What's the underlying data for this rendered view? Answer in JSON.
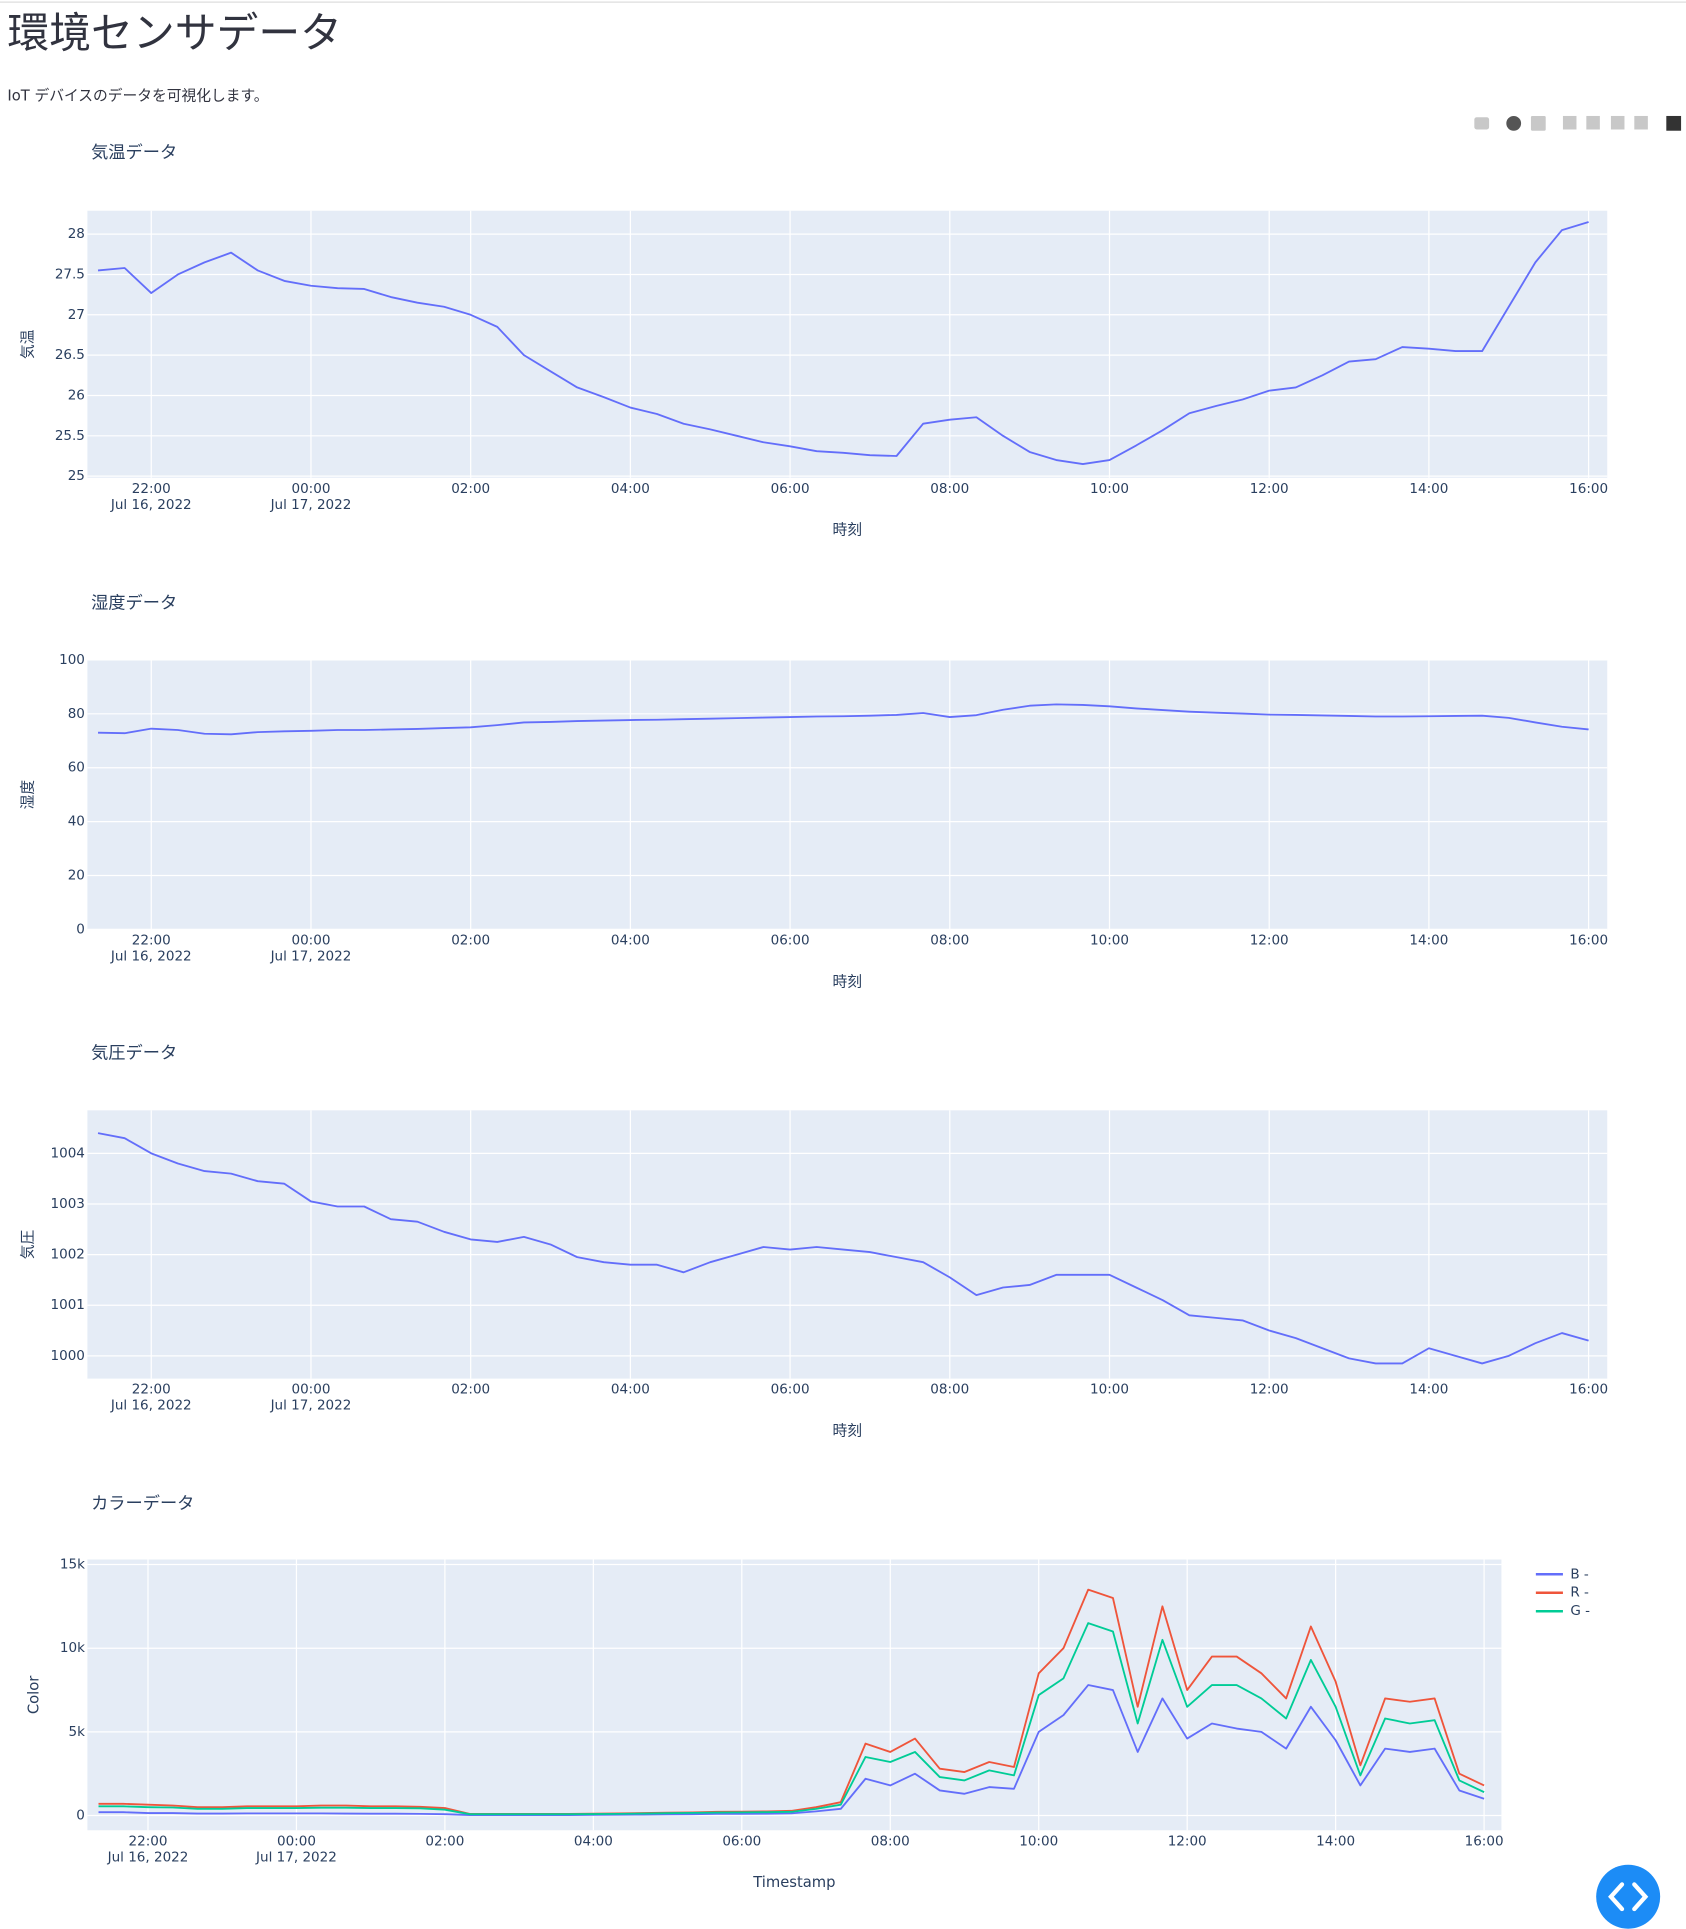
{
  "header": {
    "title": "環境センサデータ",
    "subtitle": "IoT デバイスのデータを可視化します。"
  },
  "chart_data": [
    {
      "type": "line",
      "title": "気温データ",
      "x_label": "時刻",
      "y_label": "気温",
      "xlim": [
        "2022-07-16T21:12",
        "2022-07-17T16:14"
      ],
      "ylim": [
        24.98,
        28.29
      ],
      "yticks": [
        25,
        25.5,
        26,
        26.5,
        27,
        27.5,
        28
      ],
      "grid": true,
      "xticks": [
        {
          "value": "2022-07-16T22:00",
          "label": "22:00",
          "date": "Jul 16, 2022"
        },
        {
          "value": "2022-07-17T00:00",
          "label": "00:00",
          "date": "Jul 17, 2022"
        },
        {
          "value": "2022-07-17T02:00",
          "label": "02:00"
        },
        {
          "value": "2022-07-17T04:00",
          "label": "04:00"
        },
        {
          "value": "2022-07-17T06:00",
          "label": "06:00"
        },
        {
          "value": "2022-07-17T08:00",
          "label": "08:00"
        },
        {
          "value": "2022-07-17T10:00",
          "label": "10:00"
        },
        {
          "value": "2022-07-17T12:00",
          "label": "12:00"
        },
        {
          "value": "2022-07-17T14:00",
          "label": "14:00"
        },
        {
          "value": "2022-07-17T16:00",
          "label": "16:00"
        }
      ],
      "x": [
        "2022-07-16T21:20",
        "2022-07-16T21:40",
        "2022-07-16T22:00",
        "2022-07-16T22:20",
        "2022-07-16T22:40",
        "2022-07-16T23:00",
        "2022-07-16T23:20",
        "2022-07-16T23:40",
        "2022-07-17T00:00",
        "2022-07-17T00:20",
        "2022-07-17T00:40",
        "2022-07-17T01:00",
        "2022-07-17T01:20",
        "2022-07-17T01:40",
        "2022-07-17T02:00",
        "2022-07-17T02:20",
        "2022-07-17T02:40",
        "2022-07-17T03:00",
        "2022-07-17T03:20",
        "2022-07-17T03:40",
        "2022-07-17T04:00",
        "2022-07-17T04:20",
        "2022-07-17T04:40",
        "2022-07-17T05:00",
        "2022-07-17T05:20",
        "2022-07-17T05:40",
        "2022-07-17T06:00",
        "2022-07-17T06:20",
        "2022-07-17T06:40",
        "2022-07-17T07:00",
        "2022-07-17T07:20",
        "2022-07-17T07:40",
        "2022-07-17T08:00",
        "2022-07-17T08:20",
        "2022-07-17T08:40",
        "2022-07-17T09:00",
        "2022-07-17T09:20",
        "2022-07-17T09:40",
        "2022-07-17T10:00",
        "2022-07-17T10:20",
        "2022-07-17T10:40",
        "2022-07-17T11:00",
        "2022-07-17T11:20",
        "2022-07-17T11:40",
        "2022-07-17T12:00",
        "2022-07-17T12:20",
        "2022-07-17T12:40",
        "2022-07-17T13:00",
        "2022-07-17T13:20",
        "2022-07-17T13:40",
        "2022-07-17T14:00",
        "2022-07-17T14:20",
        "2022-07-17T14:40",
        "2022-07-17T15:00",
        "2022-07-17T15:20",
        "2022-07-17T15:40",
        "2022-07-17T16:00"
      ],
      "series": [
        {
          "color": "#636efa",
          "values": [
            27.55,
            27.58,
            27.27,
            27.5,
            27.65,
            27.77,
            27.55,
            27.42,
            27.36,
            27.33,
            27.32,
            27.22,
            27.15,
            27.1,
            27.0,
            26.85,
            26.5,
            26.3,
            26.1,
            25.98,
            25.85,
            25.77,
            25.65,
            25.58,
            25.5,
            25.42,
            25.37,
            25.31,
            25.29,
            25.26,
            25.25,
            25.65,
            25.7,
            25.73,
            25.5,
            25.3,
            25.2,
            25.15,
            25.2,
            25.38,
            25.57,
            25.78,
            25.87,
            25.95,
            26.06,
            26.1,
            26.25,
            26.42,
            26.45,
            26.6,
            26.58,
            26.55,
            26.55,
            27.1,
            27.65,
            28.05,
            28.15
          ]
        }
      ]
    },
    {
      "type": "line",
      "title": "湿度データ",
      "x_label": "時刻",
      "y_label": "湿度",
      "xlim": [
        "2022-07-16T21:12",
        "2022-07-17T16:14"
      ],
      "ylim": [
        0,
        100
      ],
      "yticks": [
        0,
        20,
        40,
        60,
        80,
        100
      ],
      "grid": true,
      "xticks": [
        {
          "value": "2022-07-16T22:00",
          "label": "22:00",
          "date": "Jul 16, 2022"
        },
        {
          "value": "2022-07-17T00:00",
          "label": "00:00",
          "date": "Jul 17, 2022"
        },
        {
          "value": "2022-07-17T02:00",
          "label": "02:00"
        },
        {
          "value": "2022-07-17T04:00",
          "label": "04:00"
        },
        {
          "value": "2022-07-17T06:00",
          "label": "06:00"
        },
        {
          "value": "2022-07-17T08:00",
          "label": "08:00"
        },
        {
          "value": "2022-07-17T10:00",
          "label": "10:00"
        },
        {
          "value": "2022-07-17T12:00",
          "label": "12:00"
        },
        {
          "value": "2022-07-17T14:00",
          "label": "14:00"
        },
        {
          "value": "2022-07-17T16:00",
          "label": "16:00"
        }
      ],
      "x": [
        "2022-07-16T21:20",
        "2022-07-16T21:40",
        "2022-07-16T22:00",
        "2022-07-16T22:20",
        "2022-07-16T22:40",
        "2022-07-16T23:00",
        "2022-07-16T23:20",
        "2022-07-16T23:40",
        "2022-07-17T00:00",
        "2022-07-17T00:20",
        "2022-07-17T00:40",
        "2022-07-17T01:00",
        "2022-07-17T01:20",
        "2022-07-17T01:40",
        "2022-07-17T02:00",
        "2022-07-17T02:20",
        "2022-07-17T02:40",
        "2022-07-17T03:00",
        "2022-07-17T03:20",
        "2022-07-17T03:40",
        "2022-07-17T04:00",
        "2022-07-17T04:20",
        "2022-07-17T04:40",
        "2022-07-17T05:00",
        "2022-07-17T05:20",
        "2022-07-17T05:40",
        "2022-07-17T06:00",
        "2022-07-17T06:20",
        "2022-07-17T06:40",
        "2022-07-17T07:00",
        "2022-07-17T07:20",
        "2022-07-17T07:40",
        "2022-07-17T08:00",
        "2022-07-17T08:20",
        "2022-07-17T08:40",
        "2022-07-17T09:00",
        "2022-07-17T09:20",
        "2022-07-17T09:40",
        "2022-07-17T10:00",
        "2022-07-17T10:20",
        "2022-07-17T10:40",
        "2022-07-17T11:00",
        "2022-07-17T11:20",
        "2022-07-17T11:40",
        "2022-07-17T12:00",
        "2022-07-17T12:20",
        "2022-07-17T12:40",
        "2022-07-17T13:00",
        "2022-07-17T13:20",
        "2022-07-17T13:40",
        "2022-07-17T14:00",
        "2022-07-17T14:20",
        "2022-07-17T14:40",
        "2022-07-17T15:00",
        "2022-07-17T15:20",
        "2022-07-17T15:40",
        "2022-07-17T16:00"
      ],
      "series": [
        {
          "color": "#636efa",
          "values": [
            73,
            72.8,
            74.5,
            74,
            72.6,
            72.4,
            73.2,
            73.5,
            73.7,
            74,
            74,
            74.2,
            74.4,
            74.7,
            75,
            75.8,
            76.8,
            77,
            77.3,
            77.5,
            77.7,
            77.8,
            78,
            78.2,
            78.4,
            78.6,
            78.8,
            79,
            79.1,
            79.3,
            79.6,
            80.3,
            78.8,
            79.5,
            81.5,
            83,
            83.5,
            83.3,
            82.8,
            82,
            81.4,
            80.8,
            80.4,
            80.1,
            79.7,
            79.6,
            79.4,
            79.2,
            79,
            79,
            79.1,
            79.2,
            79.3,
            78.5,
            76.8,
            75.2,
            74.2
          ]
        }
      ]
    },
    {
      "type": "line",
      "title": "気圧データ",
      "x_label": "時刻",
      "y_label": "気圧",
      "xlim": [
        "2022-07-16T21:12",
        "2022-07-17T16:14"
      ],
      "ylim": [
        999.55,
        1004.85
      ],
      "yticks": [
        1000,
        1001,
        1002,
        1003,
        1004
      ],
      "grid": true,
      "xticks": [
        {
          "value": "2022-07-16T22:00",
          "label": "22:00",
          "date": "Jul 16, 2022"
        },
        {
          "value": "2022-07-17T00:00",
          "label": "00:00",
          "date": "Jul 17, 2022"
        },
        {
          "value": "2022-07-17T02:00",
          "label": "02:00"
        },
        {
          "value": "2022-07-17T04:00",
          "label": "04:00"
        },
        {
          "value": "2022-07-17T06:00",
          "label": "06:00"
        },
        {
          "value": "2022-07-17T08:00",
          "label": "08:00"
        },
        {
          "value": "2022-07-17T10:00",
          "label": "10:00"
        },
        {
          "value": "2022-07-17T12:00",
          "label": "12:00"
        },
        {
          "value": "2022-07-17T14:00",
          "label": "14:00"
        },
        {
          "value": "2022-07-17T16:00",
          "label": "16:00"
        }
      ],
      "x": [
        "2022-07-16T21:20",
        "2022-07-16T21:40",
        "2022-07-16T22:00",
        "2022-07-16T22:20",
        "2022-07-16T22:40",
        "2022-07-16T23:00",
        "2022-07-16T23:20",
        "2022-07-16T23:40",
        "2022-07-17T00:00",
        "2022-07-17T00:20",
        "2022-07-17T00:40",
        "2022-07-17T01:00",
        "2022-07-17T01:20",
        "2022-07-17T01:40",
        "2022-07-17T02:00",
        "2022-07-17T02:20",
        "2022-07-17T02:40",
        "2022-07-17T03:00",
        "2022-07-17T03:20",
        "2022-07-17T03:40",
        "2022-07-17T04:00",
        "2022-07-17T04:20",
        "2022-07-17T04:40",
        "2022-07-17T05:00",
        "2022-07-17T05:20",
        "2022-07-17T05:40",
        "2022-07-17T06:00",
        "2022-07-17T06:20",
        "2022-07-17T06:40",
        "2022-07-17T07:00",
        "2022-07-17T07:20",
        "2022-07-17T07:40",
        "2022-07-17T08:00",
        "2022-07-17T08:20",
        "2022-07-17T08:40",
        "2022-07-17T09:00",
        "2022-07-17T09:20",
        "2022-07-17T09:40",
        "2022-07-17T10:00",
        "2022-07-17T10:20",
        "2022-07-17T10:40",
        "2022-07-17T11:00",
        "2022-07-17T11:20",
        "2022-07-17T11:40",
        "2022-07-17T12:00",
        "2022-07-17T12:20",
        "2022-07-17T12:40",
        "2022-07-17T13:00",
        "2022-07-17T13:20",
        "2022-07-17T13:40",
        "2022-07-17T14:00",
        "2022-07-17T14:20",
        "2022-07-17T14:40",
        "2022-07-17T15:00",
        "2022-07-17T15:20",
        "2022-07-17T15:40",
        "2022-07-17T16:00"
      ],
      "series": [
        {
          "color": "#636efa",
          "values": [
            1004.4,
            1004.3,
            1004.0,
            1003.8,
            1003.65,
            1003.6,
            1003.45,
            1003.4,
            1003.05,
            1002.95,
            1002.95,
            1002.7,
            1002.65,
            1002.45,
            1002.3,
            1002.25,
            1002.35,
            1002.2,
            1001.95,
            1001.85,
            1001.8,
            1001.8,
            1001.65,
            1001.85,
            1002.0,
            1002.15,
            1002.1,
            1002.15,
            1002.1,
            1002.05,
            1001.95,
            1001.85,
            1001.55,
            1001.2,
            1001.35,
            1001.4,
            1001.6,
            1001.6,
            1001.6,
            1001.35,
            1001.1,
            1000.8,
            1000.75,
            1000.7,
            1000.5,
            1000.35,
            1000.15,
            999.95,
            999.85,
            999.85,
            1000.15,
            1000.0,
            999.85,
            1000.0,
            1000.25,
            1000.45,
            1000.3
          ]
        }
      ]
    },
    {
      "type": "line",
      "title": "カラーデータ",
      "x_label": "Timestamp",
      "y_label": "Color",
      "legend": "top-right",
      "xlim": [
        "2022-07-16T21:11",
        "2022-07-17T16:14"
      ],
      "ylim": [
        -880,
        15300
      ],
      "yticks": [
        0,
        {
          "value": 5000,
          "label": "5k"
        },
        {
          "value": 10000,
          "label": "10k"
        },
        {
          "value": 15000,
          "label": "15k"
        }
      ],
      "grid": true,
      "xticks": [
        {
          "value": "2022-07-16T22:00",
          "label": "22:00",
          "date": "Jul 16, 2022"
        },
        {
          "value": "2022-07-17T00:00",
          "label": "00:00",
          "date": "Jul 17, 2022"
        },
        {
          "value": "2022-07-17T02:00",
          "label": "02:00"
        },
        {
          "value": "2022-07-17T04:00",
          "label": "04:00"
        },
        {
          "value": "2022-07-17T06:00",
          "label": "06:00"
        },
        {
          "value": "2022-07-17T08:00",
          "label": "08:00"
        },
        {
          "value": "2022-07-17T10:00",
          "label": "10:00"
        },
        {
          "value": "2022-07-17T12:00",
          "label": "12:00"
        },
        {
          "value": "2022-07-17T14:00",
          "label": "14:00"
        },
        {
          "value": "2022-07-17T16:00",
          "label": "16:00"
        }
      ],
      "x": [
        "2022-07-16T21:20",
        "2022-07-16T21:40",
        "2022-07-16T22:00",
        "2022-07-16T22:20",
        "2022-07-16T22:40",
        "2022-07-16T23:00",
        "2022-07-16T23:20",
        "2022-07-16T23:40",
        "2022-07-17T00:00",
        "2022-07-17T00:20",
        "2022-07-17T00:40",
        "2022-07-17T01:00",
        "2022-07-17T01:20",
        "2022-07-17T01:40",
        "2022-07-17T02:00",
        "2022-07-17T02:20",
        "2022-07-17T02:40",
        "2022-07-17T03:00",
        "2022-07-17T03:20",
        "2022-07-17T03:40",
        "2022-07-17T04:00",
        "2022-07-17T04:20",
        "2022-07-17T04:40",
        "2022-07-17T05:00",
        "2022-07-17T05:20",
        "2022-07-17T05:40",
        "2022-07-17T06:00",
        "2022-07-17T06:20",
        "2022-07-17T06:40",
        "2022-07-17T07:00",
        "2022-07-17T07:20",
        "2022-07-17T07:40",
        "2022-07-17T08:00",
        "2022-07-17T08:20",
        "2022-07-17T08:40",
        "2022-07-17T09:00",
        "2022-07-17T09:20",
        "2022-07-17T09:40",
        "2022-07-17T10:00",
        "2022-07-17T10:20",
        "2022-07-17T10:40",
        "2022-07-17T11:00",
        "2022-07-17T11:20",
        "2022-07-17T11:40",
        "2022-07-17T12:00",
        "2022-07-17T12:20",
        "2022-07-17T12:40",
        "2022-07-17T13:00",
        "2022-07-17T13:20",
        "2022-07-17T13:40",
        "2022-07-17T14:00",
        "2022-07-17T14:20",
        "2022-07-17T14:40",
        "2022-07-17T15:00",
        "2022-07-17T15:20",
        "2022-07-17T15:40",
        "2022-07-17T16:00"
      ],
      "series": [
        {
          "name": "B -",
          "color": "#636efa",
          "values": [
            200,
            200,
            150,
            150,
            120,
            120,
            130,
            130,
            130,
            130,
            120,
            110,
            110,
            100,
            80,
            30,
            30,
            30,
            30,
            30,
            40,
            50,
            60,
            70,
            80,
            100,
            100,
            110,
            130,
            250,
            400,
            2200,
            1800,
            2500,
            1500,
            1300,
            1700,
            1600,
            5000,
            6000,
            7800,
            7500,
            3800,
            7000,
            4600,
            5500,
            5200,
            5000,
            4000,
            6500,
            4500,
            1800,
            4000,
            3800,
            4000,
            1500,
            1000
          ]
        },
        {
          "name": "R -",
          "color": "#EF553B",
          "values": [
            700,
            700,
            650,
            600,
            500,
            500,
            550,
            550,
            550,
            600,
            600,
            550,
            550,
            520,
            450,
            100,
            100,
            100,
            100,
            100,
            110,
            130,
            150,
            170,
            190,
            220,
            230,
            250,
            280,
            500,
            800,
            4300,
            3800,
            4600,
            2800,
            2600,
            3200,
            2900,
            8500,
            10000,
            13500,
            13000,
            6500,
            12500,
            7500,
            9500,
            9500,
            8500,
            7000,
            11300,
            8000,
            3000,
            7000,
            6800,
            7000,
            2500,
            1800
          ]
        },
        {
          "name": "G -",
          "color": "#00cc96",
          "values": [
            550,
            550,
            500,
            480,
            400,
            400,
            450,
            450,
            450,
            470,
            470,
            450,
            450,
            430,
            350,
            80,
            80,
            80,
            80,
            80,
            90,
            100,
            120,
            140,
            160,
            180,
            190,
            200,
            220,
            400,
            650,
            3500,
            3200,
            3800,
            2300,
            2100,
            2700,
            2400,
            7200,
            8200,
            11500,
            11000,
            5500,
            10500,
            6500,
            7800,
            7800,
            7000,
            5800,
            9300,
            6500,
            2400,
            5800,
            5500,
            5700,
            2100,
            1400
          ]
        }
      ]
    }
  ]
}
